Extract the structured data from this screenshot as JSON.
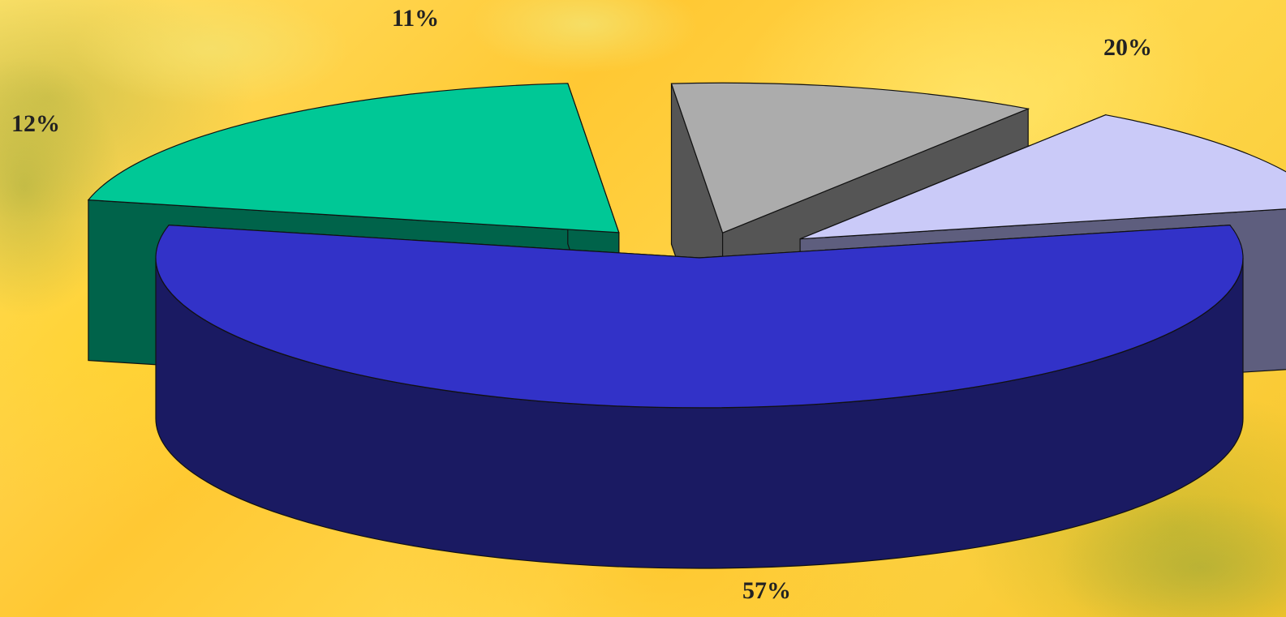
{
  "chart_data": {
    "type": "pie",
    "three_d": true,
    "exploded": true,
    "legend": "none",
    "labels": [
      "57%",
      "20%",
      "11%",
      "12%"
    ],
    "values": [
      57,
      20,
      11,
      12
    ],
    "colors": {
      "top": [
        "#3232c8",
        "#00c896",
        "#acacac",
        "#cacaf8"
      ],
      "side": [
        "#1a1a62",
        "#00634a",
        "#555555",
        "#5e5e7e"
      ]
    }
  }
}
